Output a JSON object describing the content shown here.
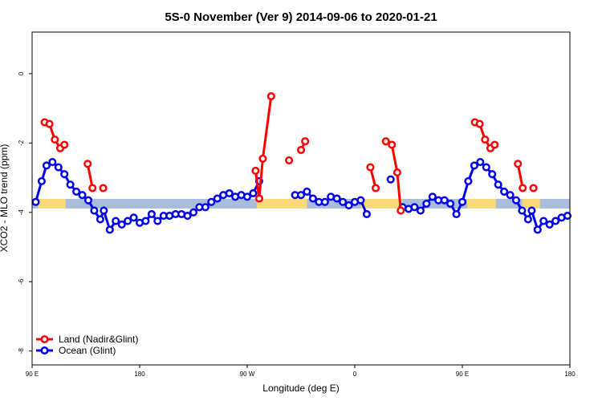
{
  "chart_data": {
    "type": "line",
    "title": "5S-0 November (Ver 9)   2014-09-06 to 2020-01-21",
    "xlabel": "Longitude (deg E)",
    "ylabel": "XCO2 - MLO trend (ppm)",
    "xlim": [
      90,
      540
    ],
    "ylim": [
      -8.4,
      1.2
    ],
    "x_ticks": [
      {
        "value": 90,
        "label": "90 E"
      },
      {
        "value": 180,
        "label": "180"
      },
      {
        "value": 270,
        "label": "90 W"
      },
      {
        "value": 360,
        "label": "0"
      },
      {
        "value": 450,
        "label": "90 E"
      },
      {
        "value": 540,
        "label": "180"
      }
    ],
    "y_ticks": [
      {
        "value": 0,
        "label": "0"
      },
      {
        "value": -2,
        "label": "-2"
      },
      {
        "value": -4,
        "label": "-4"
      },
      {
        "value": -6,
        "label": "-6"
      },
      {
        "value": -8,
        "label": "-8"
      }
    ],
    "legend": {
      "position": "bottom-left"
    },
    "land_ocean_strip": {
      "y": -3.75,
      "ocean_color": "#a8bedc",
      "land_color": "#f8d878",
      "land_segments": [
        [
          95,
          118
        ],
        [
          278,
          320
        ],
        [
          365,
          400
        ],
        [
          454,
          478
        ],
        [
          500,
          515
        ]
      ]
    },
    "series": [
      {
        "name": "Land (Nadir&Glint)",
        "color": "#ff0000",
        "segments": [
          [
            [
              100.5,
              -1.4
            ],
            [
              104.5,
              -1.45
            ],
            [
              109,
              -1.9
            ],
            [
              113.5,
              -2.15
            ],
            [
              117,
              -2.05
            ]
          ],
          [
            [
              136.5,
              -2.6
            ],
            [
              140.5,
              -3.3
            ]
          ],
          [
            [
              149.5,
              -3.3
            ]
          ],
          [
            [
              277,
              -2.8
            ],
            [
              280,
              -3.6
            ],
            [
              283,
              -2.45
            ],
            [
              290,
              -0.65
            ]
          ],
          [
            [
              305,
              -2.5
            ]
          ],
          [
            [
              315,
              -2.2
            ],
            [
              318.5,
              -1.95
            ]
          ],
          [
            [
              373,
              -2.7
            ],
            [
              377.5,
              -3.3
            ]
          ],
          [
            [
              386,
              -1.95
            ],
            [
              391,
              -2.05
            ],
            [
              395.5,
              -2.85
            ],
            [
              398.5,
              -3.95
            ]
          ],
          [
            [
              460.5,
              -1.4
            ],
            [
              464.5,
              -1.45
            ],
            [
              469,
              -1.9
            ],
            [
              473.5,
              -2.15
            ],
            [
              477,
              -2.05
            ]
          ],
          [
            [
              496.5,
              -2.6
            ],
            [
              500.5,
              -3.3
            ]
          ],
          [
            [
              509.5,
              -3.3
            ]
          ]
        ]
      },
      {
        "name": "Ocean (Glint)",
        "color": "#0000ee",
        "segments": [
          [
            [
              93,
              -3.7
            ],
            [
              98,
              -3.1
            ],
            [
              102,
              -2.65
            ],
            [
              107,
              -2.55
            ],
            [
              112,
              -2.7
            ],
            [
              117,
              -2.9
            ],
            [
              122,
              -3.2
            ],
            [
              127,
              -3.4
            ],
            [
              132,
              -3.5
            ],
            [
              137,
              -3.65
            ],
            [
              142,
              -3.95
            ],
            [
              147,
              -4.2
            ],
            [
              150,
              -3.95
            ],
            [
              155,
              -4.5
            ],
            [
              160,
              -4.25
            ],
            [
              165,
              -4.35
            ],
            [
              170,
              -4.25
            ],
            [
              175,
              -4.15
            ],
            [
              180,
              -4.3
            ],
            [
              185,
              -4.25
            ],
            [
              190,
              -4.05
            ],
            [
              195,
              -4.25
            ],
            [
              200,
              -4.1
            ],
            [
              205,
              -4.1
            ],
            [
              210,
              -4.05
            ],
            [
              215,
              -4.05
            ],
            [
              220,
              -4.1
            ],
            [
              225,
              -4.0
            ],
            [
              230,
              -3.85
            ],
            [
              235,
              -3.85
            ],
            [
              240,
              -3.7
            ],
            [
              245,
              -3.6
            ],
            [
              250,
              -3.5
            ],
            [
              255,
              -3.45
            ],
            [
              260,
              -3.55
            ],
            [
              265,
              -3.5
            ],
            [
              270,
              -3.55
            ],
            [
              275,
              -3.45
            ],
            [
              280,
              -3.1
            ]
          ],
          [
            [
              310,
              -3.5
            ],
            [
              315,
              -3.5
            ],
            [
              320,
              -3.4
            ],
            [
              325,
              -3.6
            ],
            [
              330,
              -3.7
            ],
            [
              335,
              -3.7
            ],
            [
              340,
              -3.55
            ],
            [
              345,
              -3.6
            ],
            [
              350,
              -3.7
            ],
            [
              355,
              -3.8
            ],
            [
              360,
              -3.7
            ],
            [
              365,
              -3.65
            ],
            [
              370,
              -4.05
            ]
          ],
          [
            [
              390,
              -3.05
            ]
          ],
          [
            [
              400,
              -3.85
            ],
            [
              405,
              -3.9
            ],
            [
              410,
              -3.85
            ],
            [
              415,
              -3.95
            ],
            [
              420,
              -3.75
            ],
            [
              425,
              -3.55
            ],
            [
              430,
              -3.65
            ],
            [
              435,
              -3.65
            ],
            [
              440,
              -3.75
            ],
            [
              445,
              -4.05
            ],
            [
              450,
              -3.7
            ],
            [
              455,
              -3.1
            ],
            [
              460,
              -2.65
            ],
            [
              465,
              -2.55
            ],
            [
              470,
              -2.7
            ],
            [
              475,
              -2.9
            ],
            [
              480,
              -3.2
            ],
            [
              485,
              -3.4
            ],
            [
              490,
              -3.5
            ],
            [
              495,
              -3.65
            ],
            [
              500,
              -3.95
            ],
            [
              505,
              -4.2
            ],
            [
              508,
              -3.95
            ],
            [
              513,
              -4.5
            ],
            [
              518,
              -4.25
            ],
            [
              523,
              -4.35
            ],
            [
              528,
              -4.25
            ],
            [
              533,
              -4.15
            ],
            [
              538,
              -4.1
            ]
          ]
        ]
      }
    ]
  }
}
